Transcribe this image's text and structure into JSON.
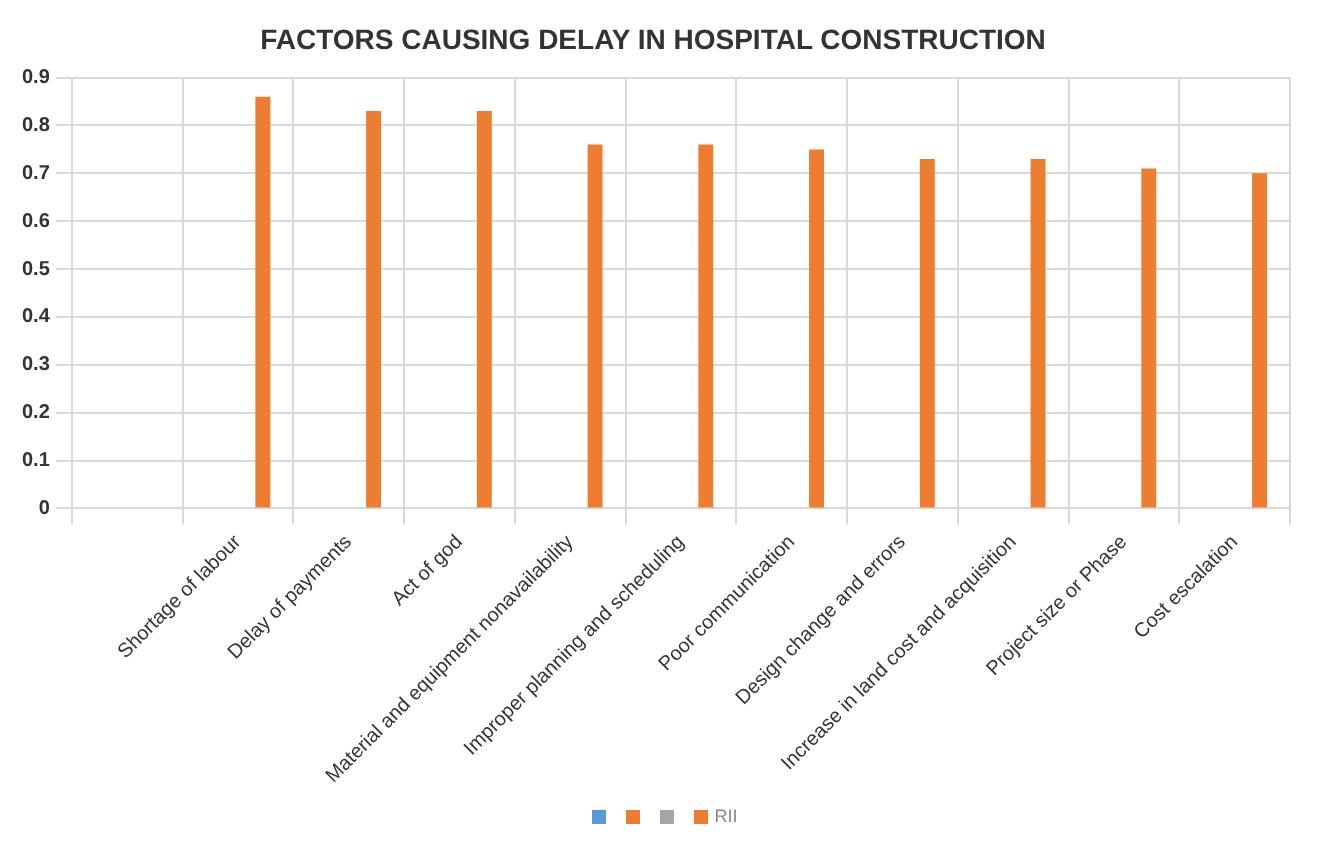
{
  "chart_data": {
    "type": "bar",
    "title": "FACTORS CAUSING DELAY IN HOSPITAL CONSTRUCTION",
    "categories": [
      null,
      "Shortage of labour",
      "Delay of payments",
      "Act of god",
      "Material and equipment nonavailability",
      "Improper planning and scheduling",
      "Poor communication",
      "Design change and errors",
      "Increase in land cost and acquisition",
      "Project size or Phase",
      "Cost escalation"
    ],
    "series": [
      {
        "color": "#5b9bd5",
        "values": [
          null,
          null,
          null,
          null,
          null,
          null,
          null,
          null,
          null,
          null,
          null
        ]
      },
      {
        "color": "#ed7d31",
        "values": [
          null,
          null,
          null,
          null,
          null,
          null,
          null,
          null,
          null,
          null,
          null
        ]
      },
      {
        "color": "#a5a5a5",
        "values": [
          null,
          null,
          null,
          null,
          null,
          null,
          null,
          null,
          null,
          null,
          null
        ]
      },
      {
        "name": "RII",
        "color": "#ed7d31",
        "values": [
          null,
          0.86,
          0.83,
          0.83,
          0.76,
          0.76,
          0.75,
          0.73,
          0.73,
          0.71,
          0.7
        ]
      }
    ],
    "ylim": [
      0,
      0.9
    ],
    "yticks": [
      0,
      0.1,
      0.2,
      0.3,
      0.4,
      0.5,
      0.6,
      0.7,
      0.8,
      0.9
    ],
    "grid": true,
    "legend": "bottom"
  }
}
